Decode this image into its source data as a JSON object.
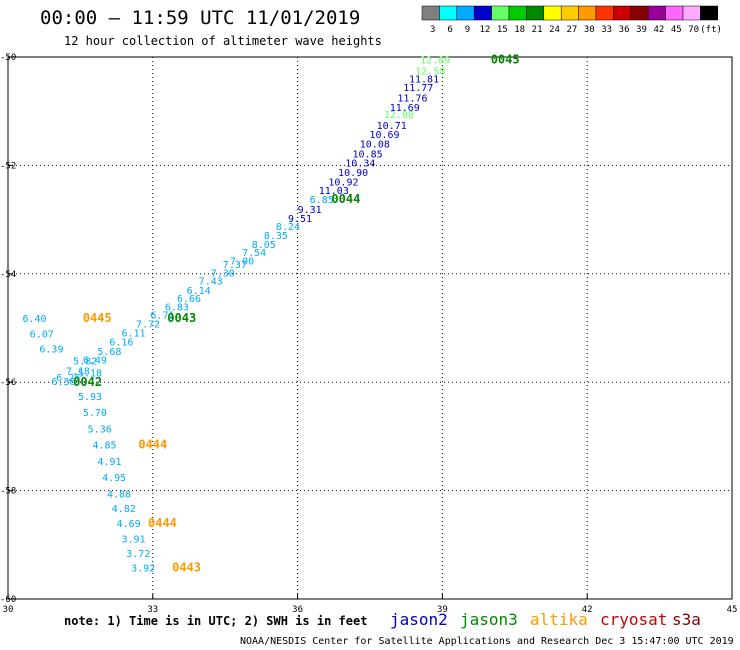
{
  "header": {
    "title": "00:00 — 11:59 UTC 11/01/2019",
    "subtitle": "12 hour collection of altimeter wave heights"
  },
  "colorbar": {
    "colors": [
      "#7f7f7f",
      "#00ffff",
      "#00aaff",
      "#0000cc",
      "#66ff66",
      "#00cc00",
      "#008800",
      "#ffff00",
      "#ffcc00",
      "#ff9900",
      "#ff3300",
      "#cc0000",
      "#880000",
      "#990099",
      "#ff66ff",
      "#ffaaff",
      "#000000"
    ],
    "labels": [
      "3",
      "6",
      "9",
      "12",
      "15",
      "18",
      "21",
      "24",
      "27",
      "30",
      "33",
      "36",
      "39",
      "42",
      "45",
      "70",
      "(ft)"
    ]
  },
  "footer": {
    "note": "note: 1) Time is in UTC; 2) SWH is in feet",
    "credit": "NOAA/NESDIS Center for Satellite Applications and Research   Dec  3 15:47:00 UTC 2019"
  },
  "legend": [
    {
      "name": "jason2",
      "color": "#0000cc"
    },
    {
      "name": "jason3",
      "color": "#008800"
    },
    {
      "name": "altika",
      "color": "#ff9900"
    },
    {
      "name": "cryosat",
      "color": "#cc0000"
    },
    {
      "name": "s3a",
      "color": "#880000"
    }
  ],
  "chart_data": {
    "type": "scatter",
    "xlim": [
      30,
      45
    ],
    "ylim": [
      -60,
      -50
    ],
    "xticks": [
      "30",
      "33",
      "36",
      "39",
      "42",
      "45"
    ],
    "yticks": [
      "-50",
      "-52",
      "-54",
      "-56",
      "-58",
      "-60"
    ],
    "grid": true,
    "points": [
      {
        "x": 38.85,
        "y": -50.05,
        "label": "12.89",
        "color": "#66ff66"
      },
      {
        "x": 38.75,
        "y": -50.25,
        "label": "12.58",
        "color": "#66ff66"
      },
      {
        "x": 38.62,
        "y": -50.4,
        "label": "11.81",
        "color": "#0000cc"
      },
      {
        "x": 38.5,
        "y": -50.55,
        "label": "11.77",
        "color": "#0000cc"
      },
      {
        "x": 38.38,
        "y": -50.75,
        "label": "11.76",
        "color": "#0000cc"
      },
      {
        "x": 38.22,
        "y": -50.92,
        "label": "11.69",
        "color": "#0000cc"
      },
      {
        "x": 38.1,
        "y": -51.05,
        "label": "12.08",
        "color": "#66ff66"
      },
      {
        "x": 37.95,
        "y": -51.25,
        "label": "10.71",
        "color": "#0000cc"
      },
      {
        "x": 37.8,
        "y": -51.42,
        "label": "10.69",
        "color": "#0000cc"
      },
      {
        "x": 37.6,
        "y": -51.6,
        "label": "10.08",
        "color": "#0000cc"
      },
      {
        "x": 37.45,
        "y": -51.78,
        "label": "10.85",
        "color": "#0000cc"
      },
      {
        "x": 37.3,
        "y": -51.95,
        "label": "10.34",
        "color": "#0000cc"
      },
      {
        "x": 37.15,
        "y": -52.12,
        "label": "10.90",
        "color": "#0000cc"
      },
      {
        "x": 36.95,
        "y": -52.3,
        "label": "10.92",
        "color": "#0000cc"
      },
      {
        "x": 36.75,
        "y": -52.45,
        "label": "11.03",
        "color": "#0000cc"
      },
      {
        "x": 36.5,
        "y": -52.62,
        "label": "6.85",
        "color": "#00aaff"
      },
      {
        "x": 36.25,
        "y": -52.8,
        "label": "9.31",
        "color": "#0000cc"
      },
      {
        "x": 36.05,
        "y": -52.97,
        "label": "9.51",
        "color": "#0000cc"
      },
      {
        "x": 35.8,
        "y": -53.12,
        "label": "8.24",
        "color": "#00aaff"
      },
      {
        "x": 35.55,
        "y": -53.28,
        "label": "8.35",
        "color": "#00aaff"
      },
      {
        "x": 35.3,
        "y": -53.45,
        "label": "8.05",
        "color": "#00aaff"
      },
      {
        "x": 35.1,
        "y": -53.6,
        "label": "7.54",
        "color": "#00aaff"
      },
      {
        "x": 34.85,
        "y": -53.75,
        "label": "7.00",
        "color": "#00aaff"
      },
      {
        "x": 34.7,
        "y": -53.82,
        "label": "7.37",
        "color": "#00aaff"
      },
      {
        "x": 34.45,
        "y": -53.98,
        "label": "7.30",
        "color": "#00aaff"
      },
      {
        "x": 34.2,
        "y": -54.12,
        "label": "7.43",
        "color": "#00aaff"
      },
      {
        "x": 33.95,
        "y": -54.3,
        "label": "6.14",
        "color": "#00aaff"
      },
      {
        "x": 33.75,
        "y": -54.45,
        "label": "6.66",
        "color": "#00aaff"
      },
      {
        "x": 33.5,
        "y": -54.6,
        "label": "6.83",
        "color": "#00aaff"
      },
      {
        "x": 33.2,
        "y": -54.75,
        "label": "6.71",
        "color": "#00aaff"
      },
      {
        "x": 32.9,
        "y": -54.92,
        "label": "7.72",
        "color": "#00aaff"
      },
      {
        "x": 32.6,
        "y": -55.08,
        "label": "6.11",
        "color": "#00aaff"
      },
      {
        "x": 32.35,
        "y": -55.25,
        "label": "6.16",
        "color": "#00aaff"
      },
      {
        "x": 32.1,
        "y": -55.42,
        "label": "5.68",
        "color": "#00aaff"
      },
      {
        "x": 31.8,
        "y": -55.58,
        "label": "6.49",
        "color": "#00aaff"
      },
      {
        "x": 31.6,
        "y": -55.6,
        "label": "5.82",
        "color": "#00aaff"
      },
      {
        "x": 31.45,
        "y": -55.78,
        "label": "7.18",
        "color": "#00aaff"
      },
      {
        "x": 31.7,
        "y": -55.82,
        "label": "5.18",
        "color": "#00aaff"
      },
      {
        "x": 31.25,
        "y": -55.9,
        "label": "6.25",
        "color": "#00aaff"
      },
      {
        "x": 31.15,
        "y": -55.98,
        "label": "6.36",
        "color": "#00aaff"
      },
      {
        "x": 31.7,
        "y": -56.25,
        "label": "5.93",
        "color": "#00aaff"
      },
      {
        "x": 31.8,
        "y": -56.55,
        "label": "5.70",
        "color": "#00aaff"
      },
      {
        "x": 31.9,
        "y": -56.85,
        "label": "5.36",
        "color": "#00aaff"
      },
      {
        "x": 32.0,
        "y": -57.15,
        "label": "4.85",
        "color": "#00aaff"
      },
      {
        "x": 32.1,
        "y": -57.45,
        "label": "4.91",
        "color": "#00aaff"
      },
      {
        "x": 32.2,
        "y": -57.75,
        "label": "4.95",
        "color": "#00aaff"
      },
      {
        "x": 32.3,
        "y": -58.05,
        "label": "4.88",
        "color": "#00aaff"
      },
      {
        "x": 32.4,
        "y": -58.32,
        "label": "4.82",
        "color": "#00aaff"
      },
      {
        "x": 32.5,
        "y": -58.6,
        "label": "4.69",
        "color": "#00aaff"
      },
      {
        "x": 32.6,
        "y": -58.88,
        "label": "3.91",
        "color": "#00aaff"
      },
      {
        "x": 32.7,
        "y": -59.15,
        "label": "3.72",
        "color": "#00aaff"
      },
      {
        "x": 32.8,
        "y": -59.42,
        "label": "3.92",
        "color": "#00aaff"
      },
      {
        "x": 30.55,
        "y": -54.82,
        "label": "6.40",
        "color": "#00aaff"
      },
      {
        "x": 30.7,
        "y": -55.1,
        "label": "6.07",
        "color": "#00aaff"
      },
      {
        "x": 30.9,
        "y": -55.38,
        "label": "6.39",
        "color": "#00aaff"
      }
    ],
    "time_labels": [
      {
        "x": 40.3,
        "y": -50.05,
        "label": "0045",
        "color": "#008800"
      },
      {
        "x": 37.0,
        "y": -52.62,
        "label": "0044",
        "color": "#008800"
      },
      {
        "x": 33.6,
        "y": -54.82,
        "label": "0043",
        "color": "#008800"
      },
      {
        "x": 31.65,
        "y": -56.0,
        "label": "0042",
        "color": "#008800"
      },
      {
        "x": 31.85,
        "y": -54.82,
        "label": "0445",
        "color": "#ff9900"
      },
      {
        "x": 33.0,
        "y": -57.15,
        "label": "0444",
        "color": "#ff9900"
      },
      {
        "x": 33.2,
        "y": -58.6,
        "label": "0444",
        "color": "#ff9900"
      },
      {
        "x": 33.7,
        "y": -59.42,
        "label": "0443",
        "color": "#ff9900"
      }
    ]
  }
}
